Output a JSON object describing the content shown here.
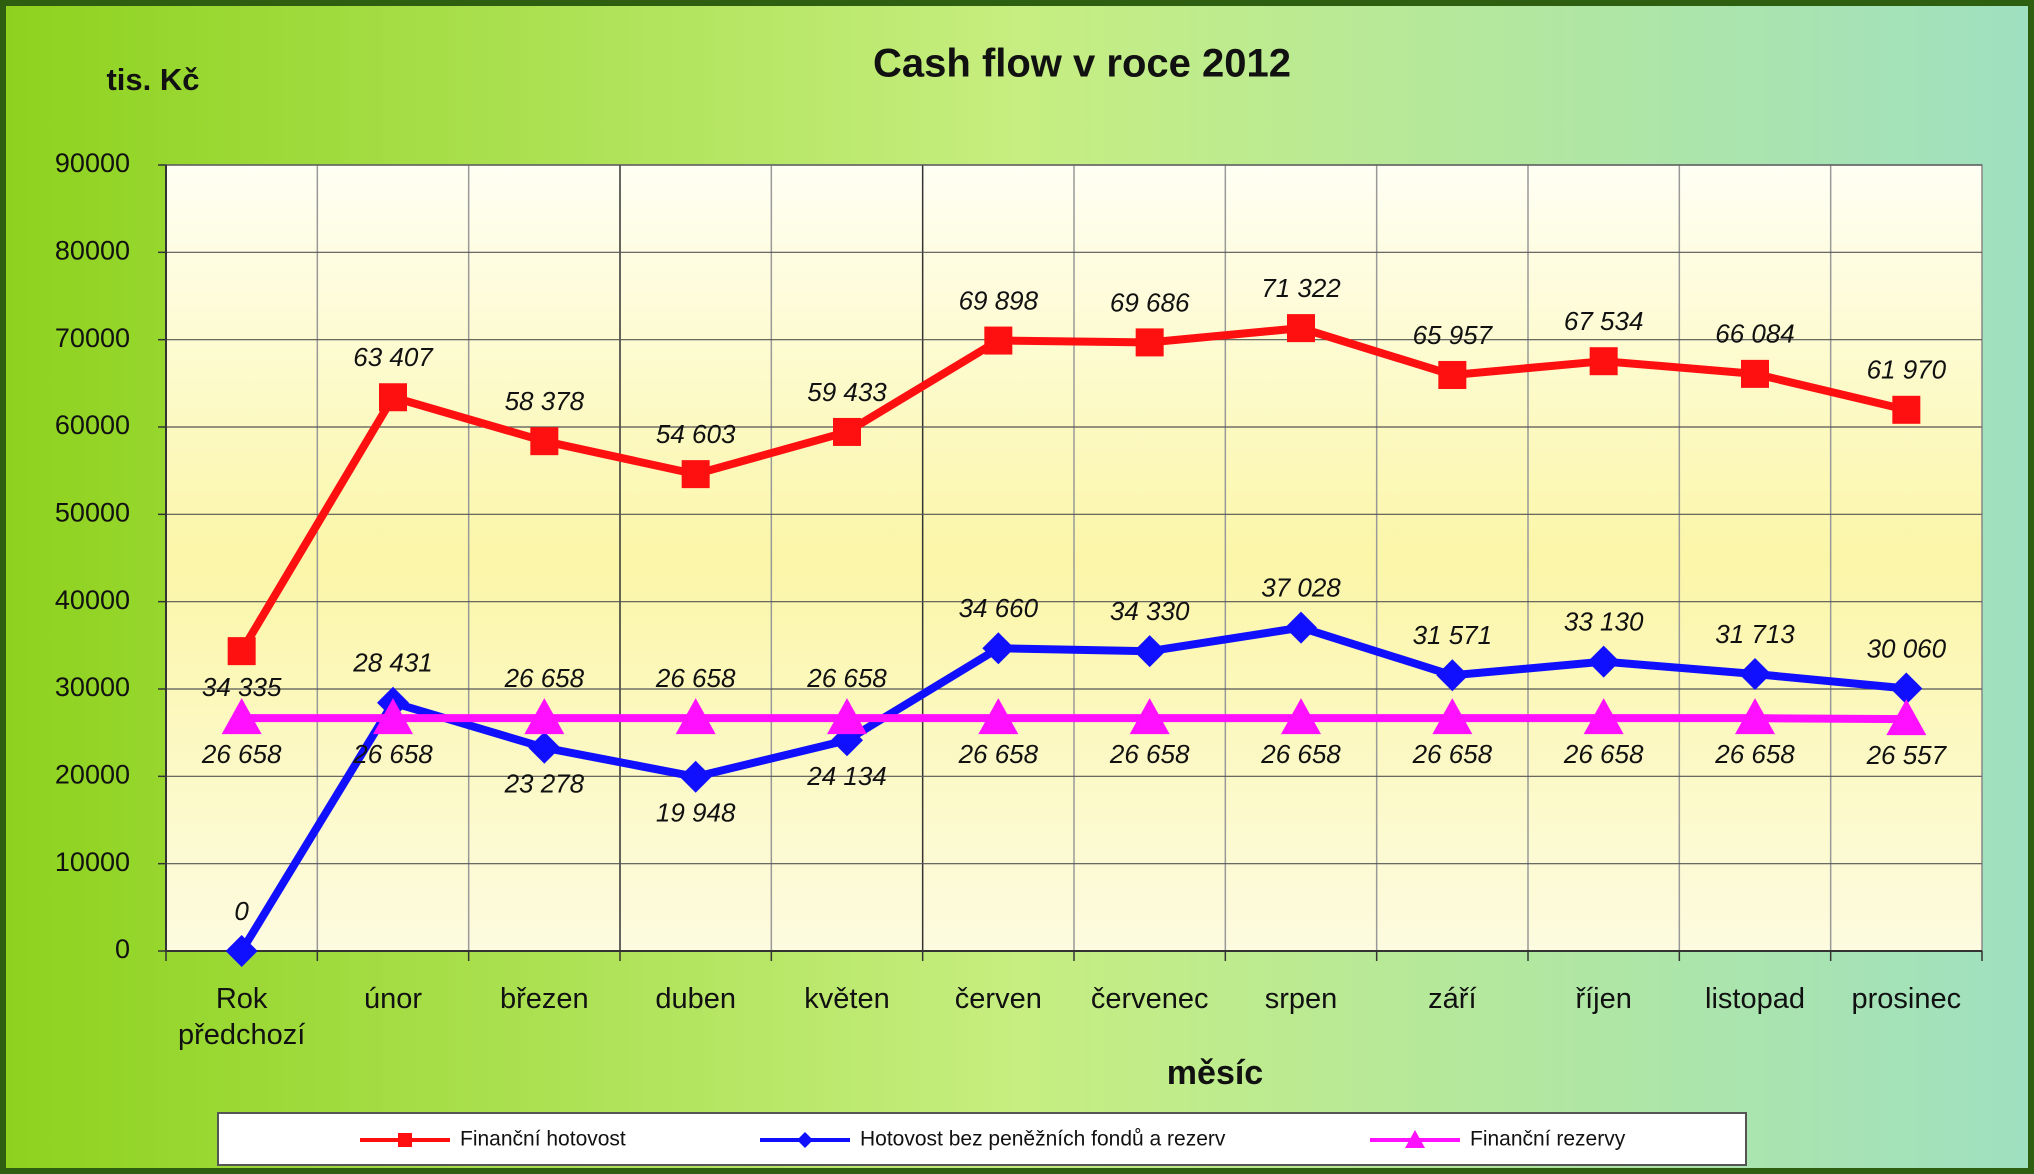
{
  "chart_data": {
    "type": "line",
    "title": "Cash flow v roce 2012",
    "y_axis_label": "tis. Kč",
    "x_axis_label": "měsíc",
    "categories": [
      "Rok předchozí",
      "únor",
      "březen",
      "duben",
      "květen",
      "červen",
      "červenec",
      "srpen",
      "září",
      "říjen",
      "listopad",
      "prosinec"
    ],
    "series": [
      {
        "name": "Finanční hotovost",
        "color": "#ff1010",
        "marker": "square",
        "values": [
          34335,
          63407,
          58378,
          54603,
          59433,
          69898,
          69686,
          71322,
          65957,
          67534,
          66084,
          61970
        ],
        "value_labels": [
          "34 335",
          "63 407",
          "58 378",
          "54 603",
          "59 433",
          "69 898",
          "69 686",
          "71 322",
          "65 957",
          "67 534",
          "66 084",
          "61 970"
        ]
      },
      {
        "name": "Hotovost bez peněžních fondů a rezerv",
        "color": "#1010ff",
        "marker": "diamond",
        "values": [
          0,
          28431,
          23278,
          19948,
          24134,
          34660,
          34330,
          37028,
          31571,
          33130,
          31713,
          30060
        ],
        "value_labels": [
          "0",
          "28 431",
          "23 278",
          "19 948",
          "24 134",
          "34 660",
          "34 330",
          "37 028",
          "31 571",
          "33 130",
          "31 713",
          "30 060"
        ]
      },
      {
        "name": "Finanční rezervy",
        "color": "#ff10ff",
        "marker": "triangle",
        "values": [
          26658,
          26658,
          26658,
          26658,
          26658,
          26658,
          26658,
          26658,
          26658,
          26658,
          26658,
          26557
        ],
        "value_labels": [
          "26 658",
          "26 658",
          "26 658",
          "26 658",
          "26 658",
          "26 658",
          "26 658",
          "26 658",
          "26 658",
          "26 658",
          "26 658",
          "26 557"
        ]
      }
    ],
    "ylim": [
      0,
      90000
    ],
    "yticks": [
      0,
      10000,
      20000,
      30000,
      40000,
      50000,
      60000,
      70000,
      80000,
      90000
    ],
    "grid": true,
    "legend": "bottom"
  }
}
